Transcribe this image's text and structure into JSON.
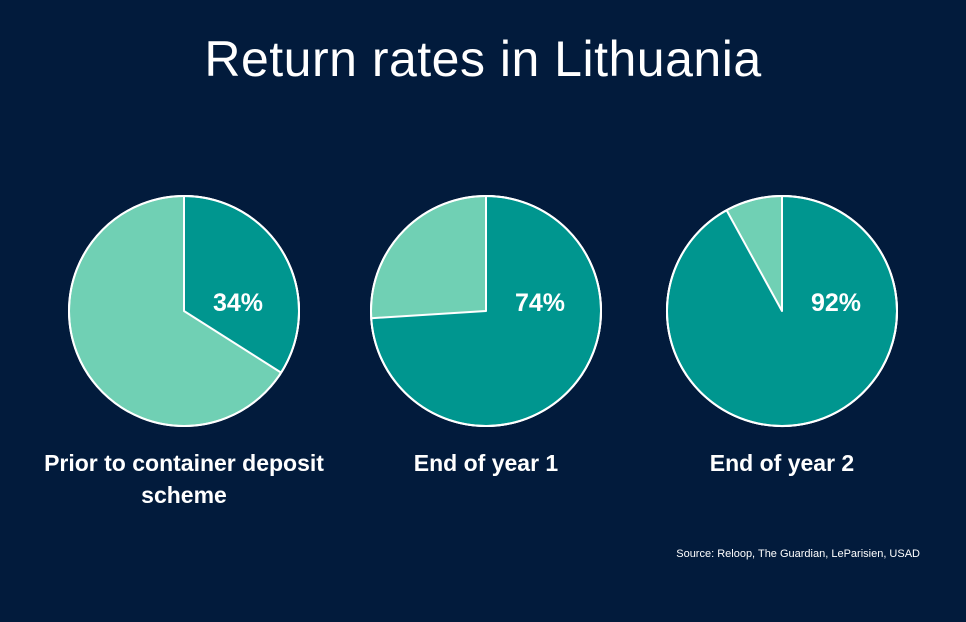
{
  "title": "Return rates in Lithuania",
  "colors": {
    "background": "#021b3c",
    "returned": "#00968f",
    "remainder": "#70d0b4",
    "outline": "#ffffff"
  },
  "chart_data": [
    {
      "type": "pie",
      "caption": "Prior to container deposit scheme",
      "value": 34,
      "label": "34%"
    },
    {
      "type": "pie",
      "caption": "End of year 1",
      "value": 74,
      "label": "74%"
    },
    {
      "type": "pie",
      "caption": "End of year 2",
      "value": 92,
      "label": "92%"
    }
  ],
  "source": "Source: Reloop, The Guardian, LeParisien, USAD"
}
